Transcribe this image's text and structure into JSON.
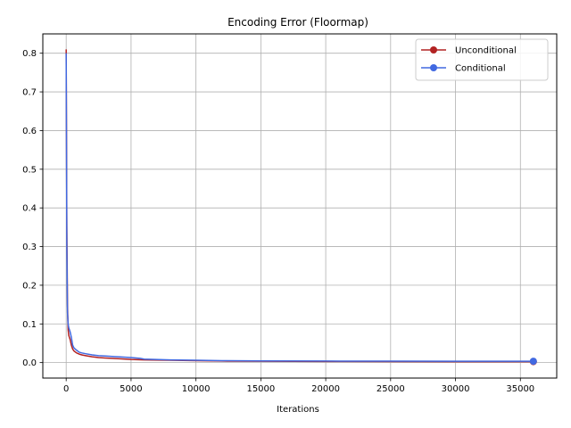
{
  "chart_data": {
    "type": "line",
    "title": "Encoding Error (Floormap)",
    "xlabel": "Iterations",
    "ylabel": "",
    "xlim": [
      -1800,
      37800
    ],
    "ylim": [
      -0.04,
      0.85
    ],
    "xticks": [
      0,
      5000,
      10000,
      15000,
      20000,
      25000,
      30000,
      35000
    ],
    "xtick_labels": [
      "0",
      "5000",
      "10000",
      "15000",
      "20000",
      "25000",
      "30000",
      "35000"
    ],
    "yticks": [
      0.0,
      0.1,
      0.2,
      0.3,
      0.4,
      0.5,
      0.6,
      0.7,
      0.8
    ],
    "ytick_labels": [
      "0.0",
      "0.1",
      "0.2",
      "0.3",
      "0.4",
      "0.5",
      "0.6",
      "0.7",
      "0.8"
    ],
    "grid": true,
    "legend_position": "top-right",
    "series": [
      {
        "name": "Unconditional",
        "color": "#b22222",
        "x": [
          0,
          50,
          100,
          150,
          200,
          300,
          400,
          500,
          600,
          800,
          1000,
          1200,
          1500,
          2000,
          2500,
          3000,
          4000,
          5000,
          6000,
          8000,
          10000,
          12000,
          15000,
          20000,
          25000,
          30000,
          36000
        ],
        "y": [
          0.81,
          0.35,
          0.15,
          0.085,
          0.07,
          0.06,
          0.045,
          0.035,
          0.03,
          0.025,
          0.022,
          0.02,
          0.018,
          0.015,
          0.013,
          0.012,
          0.01,
          0.008,
          0.007,
          0.006,
          0.005,
          0.004,
          0.0035,
          0.003,
          0.0028,
          0.0025,
          0.0025
        ]
      },
      {
        "name": "Conditional",
        "color": "#4169e1",
        "x": [
          0,
          50,
          100,
          150,
          200,
          300,
          400,
          500,
          600,
          800,
          1000,
          1200,
          1500,
          2000,
          2500,
          3000,
          4000,
          5000,
          5700,
          6000,
          8000,
          10000,
          12000,
          15000,
          20000,
          25000,
          30000,
          36000
        ],
        "y": [
          0.8,
          0.3,
          0.13,
          0.1,
          0.09,
          0.08,
          0.065,
          0.045,
          0.038,
          0.032,
          0.027,
          0.025,
          0.023,
          0.02,
          0.018,
          0.017,
          0.015,
          0.013,
          0.011,
          0.009,
          0.007,
          0.006,
          0.005,
          0.0045,
          0.004,
          0.0038,
          0.0035,
          0.0035
        ]
      }
    ]
  }
}
